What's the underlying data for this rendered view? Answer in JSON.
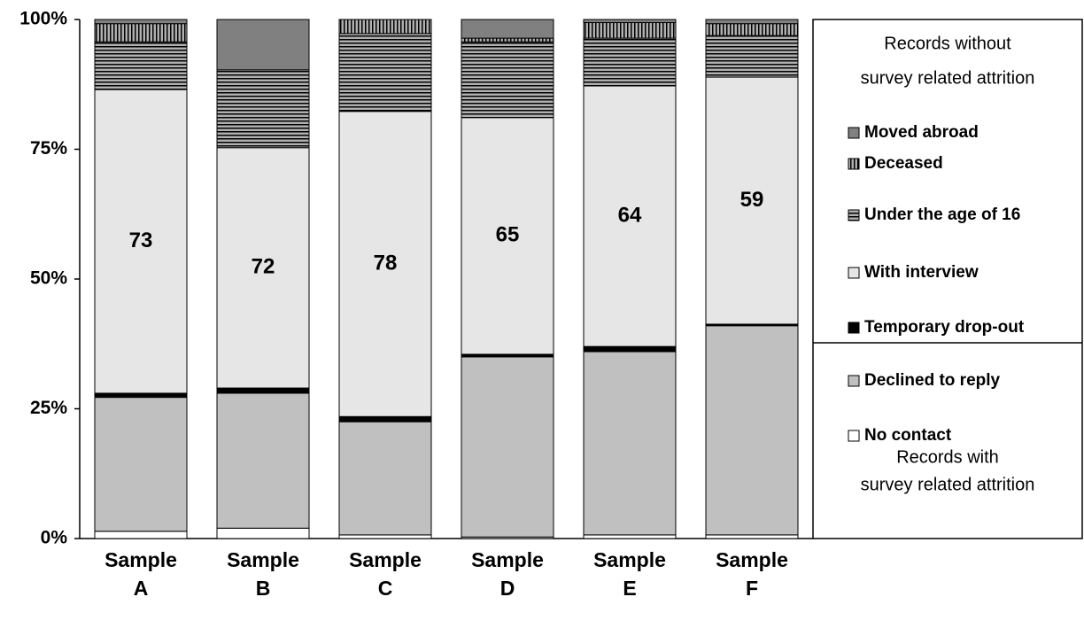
{
  "chart_data": {
    "type": "stacked_bar",
    "categories": [
      "Sample A",
      "Sample B",
      "Sample C",
      "Sample D",
      "Sample E",
      "Sample F"
    ],
    "series": [
      {
        "name": "No contact",
        "color": "#ffffff",
        "values": [
          1.4,
          2.0,
          0.7,
          0.3,
          0.7,
          0.7
        ]
      },
      {
        "name": "Declined to reply",
        "color": "#c0c0c0",
        "values": [
          25.8,
          26.0,
          21.8,
          34.7,
          35.3,
          40.3
        ]
      },
      {
        "name": "Temporary drop-out",
        "color": "#000000",
        "values": [
          0.8,
          1.0,
          1.0,
          0.5,
          1.0,
          0.3
        ]
      },
      {
        "name": "With interview",
        "color": "#e6e6e6",
        "values": [
          58.5,
          46.3,
          58.8,
          45.6,
          50.2,
          47.6
        ]
      },
      {
        "name": "Under the age of 16",
        "color": "#b0b0b0",
        "pattern": "horizontal",
        "values": [
          9.2,
          15.0,
          15.0,
          14.6,
          9.2,
          8.0
        ]
      },
      {
        "name": "Deceased",
        "color": "#b0b0b0",
        "pattern": "vertical",
        "values": [
          3.5,
          0.0,
          2.7,
          0.7,
          3.0,
          2.3
        ]
      },
      {
        "name": "Moved abroad",
        "color": "#808080",
        "values": [
          0.8,
          9.7,
          0.0,
          3.6,
          0.6,
          0.8
        ]
      }
    ],
    "interview_labels": [
      73,
      72,
      78,
      65,
      64,
      59
    ],
    "ylim": [
      0,
      100
    ],
    "yticks": [
      {
        "value": 0,
        "label": "0%"
      },
      {
        "value": 25,
        "label": "25%"
      },
      {
        "value": 50,
        "label": "50%"
      },
      {
        "value": 75,
        "label": "75%"
      },
      {
        "value": 100,
        "label": "100%"
      }
    ],
    "legend_groups": [
      {
        "title_lines": [
          "Records without",
          "survey related attrition"
        ],
        "series": [
          6,
          5,
          4,
          3,
          2
        ]
      },
      {
        "title_lines": [
          "Records with",
          "survey related attrition"
        ],
        "series": [
          1,
          0
        ]
      }
    ]
  }
}
